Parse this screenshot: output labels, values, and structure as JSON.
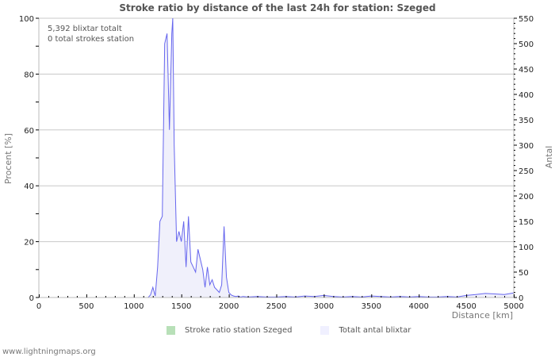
{
  "header": {
    "title": "Stroke ratio by distance of the last 24h for station: Szeged"
  },
  "annotation": {
    "line1": "5,392 blixtar totalt",
    "line2": "0 total strokes station"
  },
  "legend": {
    "items": [
      {
        "label": "Stroke ratio station Szeged",
        "color": "#b8e0b8"
      },
      {
        "label": "Totalt antal blixtar",
        "color": "#f0f0ff"
      }
    ]
  },
  "footer": {
    "text": "www.lightningmaps.org"
  },
  "colors": {
    "line": "#6666ee",
    "fill": "#f0f0fb",
    "grid": "#c8c8c8",
    "axis": "#bbbbbb"
  },
  "chart_data": {
    "type": "area",
    "title": "Stroke ratio by distance of the last 24h for station: Szeged",
    "xlabel": "Distance   [km]",
    "ylabel": "Procent   [%]",
    "y2label": "Antal",
    "xlim": [
      0,
      5000
    ],
    "ylim": [
      0,
      100
    ],
    "y2lim": [
      0,
      550
    ],
    "xticks": [
      "0",
      "500",
      "1000",
      "1500",
      "2000",
      "2500",
      "3000",
      "3500",
      "4000",
      "4500",
      "5000"
    ],
    "yticks": [
      "0",
      "20",
      "40",
      "60",
      "80",
      "100"
    ],
    "y2ticks": [
      "0",
      "50",
      "100",
      "150",
      "200",
      "250",
      "300",
      "350",
      "400",
      "450",
      "500",
      "550"
    ],
    "grid": true,
    "legend_position": "bottom",
    "series": [
      {
        "name": "Stroke ratio station Szeged",
        "axis": "left",
        "x": [],
        "values": []
      },
      {
        "name": "Totalt antal blixtar",
        "axis": "right",
        "x": [
          1150,
          1175,
          1200,
          1225,
          1250,
          1275,
          1300,
          1325,
          1350,
          1375,
          1400,
          1410,
          1425,
          1450,
          1475,
          1500,
          1525,
          1550,
          1575,
          1600,
          1625,
          1650,
          1675,
          1700,
          1725,
          1750,
          1775,
          1800,
          1825,
          1850,
          1875,
          1900,
          1925,
          1950,
          1975,
          2000,
          2025,
          2050,
          2075,
          2100,
          2125,
          2150,
          2200,
          2300,
          2400,
          2500,
          2600,
          2700,
          2800,
          2900,
          3000,
          3100,
          3200,
          3300,
          3400,
          3500,
          3600,
          3700,
          3800,
          3900,
          4000,
          4100,
          4200,
          4300,
          4400,
          4500,
          4600,
          4700,
          4800,
          4900,
          5000
        ],
        "values": [
          0,
          5,
          20,
          3,
          60,
          150,
          160,
          500,
          520,
          330,
          520,
          550,
          300,
          110,
          130,
          110,
          150,
          60,
          160,
          70,
          60,
          50,
          95,
          75,
          55,
          20,
          60,
          25,
          35,
          20,
          15,
          10,
          25,
          140,
          40,
          10,
          5,
          3,
          2,
          3,
          1,
          2,
          1,
          2,
          1,
          1,
          2,
          1,
          3,
          2,
          4,
          2,
          1,
          2,
          1,
          3,
          2,
          1,
          2,
          1,
          2,
          1,
          1,
          2,
          1,
          4,
          6,
          8,
          7,
          6,
          9
        ]
      }
    ]
  }
}
